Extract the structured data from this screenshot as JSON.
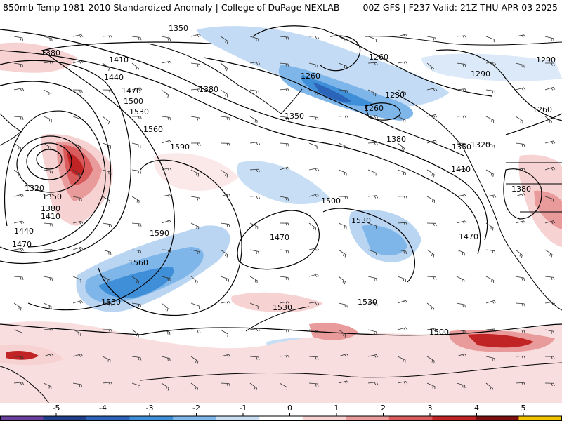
{
  "header": {
    "left_title": "850mb Temp 1981-2010 Standardized Anomaly | College of DuPage NEXLAB",
    "right_title": "00Z GFS | F237 Valid: 21Z THU APR 03 2025"
  },
  "map": {
    "contour_labels": [
      {
        "id": "c1350a",
        "text": "1350"
      },
      {
        "id": "c1380a",
        "text": "1380"
      },
      {
        "id": "c1410a",
        "text": "1410"
      },
      {
        "id": "c1440a",
        "text": "1440"
      },
      {
        "id": "c1470a",
        "text": "1470"
      },
      {
        "id": "c1500a",
        "text": "1500"
      },
      {
        "id": "c1530a",
        "text": "1530"
      },
      {
        "id": "c1560a",
        "text": "1560"
      },
      {
        "id": "c1590a",
        "text": "1590"
      },
      {
        "id": "c1590b",
        "text": "1590"
      },
      {
        "id": "c1320a",
        "text": "1320"
      },
      {
        "id": "c1350b",
        "text": "1350"
      },
      {
        "id": "c1380b",
        "text": "1380"
      },
      {
        "id": "c1410b",
        "text": "1410"
      },
      {
        "id": "c1440b",
        "text": "1440"
      },
      {
        "id": "c1470b",
        "text": "1470"
      },
      {
        "id": "c1380c",
        "text": "1380"
      },
      {
        "id": "c1350c",
        "text": "1350"
      },
      {
        "id": "c1260a",
        "text": "1260"
      },
      {
        "id": "c1260b",
        "text": "1260"
      },
      {
        "id": "c1260c",
        "text": "1260"
      },
      {
        "id": "c1230a",
        "text": "1230"
      },
      {
        "id": "c1290a",
        "text": "1290"
      },
      {
        "id": "c1290b",
        "text": "1290"
      },
      {
        "id": "c1260d",
        "text": "1260"
      },
      {
        "id": "c1380d",
        "text": "1380"
      },
      {
        "id": "c1350d",
        "text": "1350"
      },
      {
        "id": "c1320b",
        "text": "1320"
      },
      {
        "id": "c1410c",
        "text": "1410"
      },
      {
        "id": "c1380e",
        "text": "1380"
      },
      {
        "id": "c1470c",
        "text": "1470"
      },
      {
        "id": "c1500b",
        "text": "1500"
      },
      {
        "id": "c1530b",
        "text": "1530"
      },
      {
        "id": "c1470d",
        "text": "1470"
      },
      {
        "id": "c1560b",
        "text": "1560"
      },
      {
        "id": "c1530c",
        "text": "1530"
      },
      {
        "id": "c1530d",
        "text": "1530"
      },
      {
        "id": "c1530e",
        "text": "1530"
      },
      {
        "id": "c1500c",
        "text": "1500"
      }
    ]
  },
  "colorbar": {
    "ticks": [
      "-5",
      "-4",
      "-3",
      "-2",
      "-1",
      "0",
      "1",
      "2",
      "3",
      "4",
      "5"
    ],
    "colors": [
      "#6a3fa0",
      "#1f3f8a",
      "#2b64b8",
      "#3f8fd8",
      "#7fb6ea",
      "#c7def5",
      "#ffffff",
      "#f6d2d2",
      "#e99a9a",
      "#d95b5b",
      "#c02424",
      "#7c0f0f",
      "#f0c400"
    ]
  }
}
